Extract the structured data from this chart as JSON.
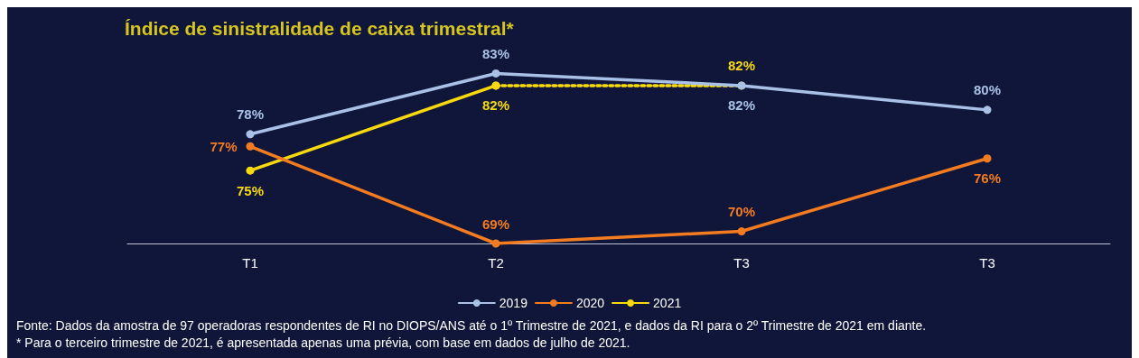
{
  "chart_data": {
    "type": "line",
    "title": "Índice de sinistralidade de caixa trimestral*",
    "categories": [
      "T1",
      "T2",
      "T3",
      "T3"
    ],
    "series": [
      {
        "name": "2019",
        "color": "#a9c1e6",
        "values": [
          78,
          83,
          82,
          80
        ],
        "value_labels": [
          "78%",
          "83%",
          "82%",
          "80%"
        ]
      },
      {
        "name": "2020",
        "color": "#f47b20",
        "values": [
          77,
          69,
          70,
          76
        ],
        "value_labels": [
          "77%",
          "69%",
          "70%",
          "76%"
        ]
      },
      {
        "name": "2021",
        "color": "#f8d90f",
        "values": [
          75,
          82,
          null,
          null
        ],
        "value_labels": [
          "75%",
          "82%",
          null,
          null
        ]
      },
      {
        "color": "#f8d90f",
        "line_style": "dotted",
        "values": [
          null,
          82,
          82,
          null
        ],
        "value_labels": [
          null,
          null,
          "82%",
          null
        ]
      }
    ],
    "marker": "circle",
    "line_style": "solid",
    "legend": "bottom",
    "grid": false,
    "tick_labels": "x",
    "annotations": [
      "Fonte: Dados da amostra de 97 operadoras respondentes de RI no DIOPS/ANS até o 1º Trimestre de 2021, e dados da RI para o 2º Trimestre de 2021 em diante.",
      "* Para o terceiro trimestre de 2021, é apresentada apenas uma prévia, com base em dados de julho de 2021."
    ]
  }
}
